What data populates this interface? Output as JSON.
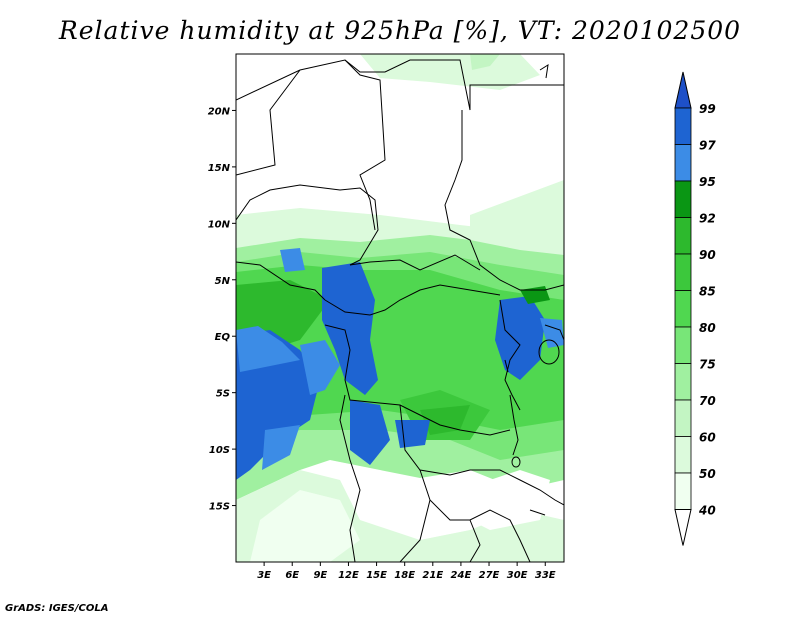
{
  "title": "Relative humidity at 925hPa [%], VT: 2020102500",
  "credit": "GrADS: IGES/COLA",
  "map": {
    "lat_labels": [
      "20N",
      "15N",
      "10N",
      "5N",
      "EQ",
      "5S",
      "10S",
      "15S"
    ],
    "lat_values": [
      20,
      15,
      10,
      5,
      0,
      -5,
      -10,
      -15
    ],
    "lon_labels": [
      "3E",
      "6E",
      "9E",
      "12E",
      "15E",
      "18E",
      "21E",
      "24E",
      "27E",
      "30E",
      "33E"
    ],
    "lon_values": [
      3,
      6,
      9,
      12,
      15,
      18,
      21,
      24,
      27,
      30,
      33
    ],
    "lon_range": [
      0,
      35
    ],
    "lat_range": [
      -20,
      25
    ]
  },
  "colorbar": {
    "labels": [
      "99",
      "97",
      "95",
      "92",
      "90",
      "85",
      "80",
      "75",
      "70",
      "60",
      "50",
      "40"
    ],
    "colors": [
      "#1e64d2",
      "#3c8ce6",
      "#0a9614",
      "#2db92d",
      "#3cc83c",
      "#50d750",
      "#78e678",
      "#a0f0a0",
      "#c3f5c3",
      "#dcfadc",
      "#f0fff0"
    ],
    "top_color": "#1e50c8"
  }
}
